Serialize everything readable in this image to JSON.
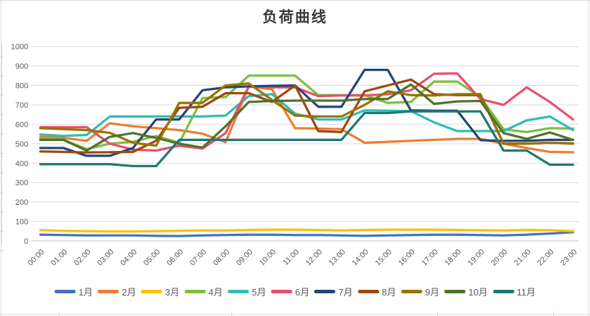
{
  "chart_data": {
    "type": "line",
    "title": "负荷曲线",
    "xlabel": "",
    "ylabel": "",
    "ylim": [
      0,
      1000
    ],
    "ytick_step": 100,
    "y_ticks": [
      0,
      100,
      200,
      300,
      400,
      500,
      600,
      700,
      800,
      900,
      1000
    ],
    "grid": true,
    "legend_position": "bottom",
    "x_labels": [
      "00:00",
      "01:00",
      "02:00",
      "03:00",
      "04:00",
      "05:00",
      "06:00",
      "07:00",
      "08:00",
      "09:00",
      "10:00",
      "11:00",
      "12:00",
      "13:00",
      "14:00",
      "15:00",
      "16:00",
      "17:00",
      "18:00",
      "19:00",
      "20:00",
      "21:00",
      "22:00",
      "23:00"
    ],
    "series": [
      {
        "name": "1月",
        "color": "#4472C4",
        "values": [
          32,
          30,
          28,
          28,
          28,
          26,
          25,
          28,
          30,
          32,
          32,
          30,
          30,
          28,
          26,
          28,
          30,
          32,
          32,
          30,
          28,
          32,
          38,
          45
        ]
      },
      {
        "name": "2月",
        "color": "#ED7D31",
        "values": [
          535,
          530,
          515,
          605,
          590,
          580,
          570,
          552,
          508,
          795,
          780,
          580,
          578,
          575,
          505,
          510,
          515,
          520,
          525,
          525,
          500,
          478,
          458,
          456
        ]
      },
      {
        "name": "3月",
        "color": "#FFC000",
        "values": [
          55,
          52,
          50,
          48,
          48,
          50,
          52,
          54,
          54,
          56,
          58,
          58,
          56,
          54,
          56,
          58,
          58,
          58,
          56,
          55,
          54,
          56,
          55,
          50
        ]
      },
      {
        "name": "4月",
        "color": "#7EBE42",
        "values": [
          525,
          520,
          472,
          500,
          510,
          540,
          505,
          735,
          740,
          850,
          850,
          850,
          750,
          750,
          750,
          710,
          715,
          820,
          820,
          740,
          575,
          560,
          580,
          578
        ]
      },
      {
        "name": "5月",
        "color": "#2FBDB3",
        "values": [
          548,
          540,
          545,
          640,
          640,
          640,
          640,
          640,
          645,
          745,
          755,
          655,
          625,
          625,
          672,
          670,
          668,
          610,
          565,
          565,
          565,
          620,
          640,
          570
        ]
      },
      {
        "name": "6月",
        "color": "#E8506B",
        "values": [
          585,
          585,
          585,
          500,
          470,
          465,
          490,
          475,
          555,
          795,
          790,
          790,
          745,
          748,
          748,
          755,
          775,
          860,
          862,
          730,
          700,
          790,
          715,
          625
        ]
      },
      {
        "name": "7月",
        "color": "#264478",
        "values": [
          478,
          478,
          438,
          438,
          478,
          625,
          625,
          775,
          790,
          795,
          798,
          800,
          690,
          690,
          880,
          880,
          672,
          670,
          670,
          518,
          515,
          515,
          520,
          520
        ]
      },
      {
        "name": "8月",
        "color": "#9E480E",
        "values": [
          460,
          458,
          455,
          456,
          458,
          515,
          685,
          690,
          760,
          760,
          715,
          800,
          565,
          560,
          770,
          800,
          830,
          755,
          750,
          750,
          500,
          500,
          505,
          500
        ]
      },
      {
        "name": "9月",
        "color": "#997300",
        "values": [
          580,
          575,
          570,
          556,
          505,
          490,
          710,
          710,
          800,
          810,
          725,
          645,
          640,
          640,
          700,
          770,
          750,
          748,
          755,
          755,
          500,
          500,
          505,
          502
        ]
      },
      {
        "name": "10月",
        "color": "#4E7429",
        "values": [
          520,
          520,
          465,
          535,
          555,
          530,
          500,
          480,
          590,
          715,
          720,
          722,
          722,
          722,
          730,
          730,
          805,
          705,
          718,
          720,
          555,
          525,
          558,
          520
        ]
      },
      {
        "name": "11月",
        "color": "#1F7872",
        "values": [
          395,
          395,
          395,
          395,
          385,
          385,
          520,
          520,
          520,
          520,
          520,
          520,
          520,
          520,
          658,
          658,
          666,
          666,
          666,
          666,
          465,
          465,
          392,
          392
        ]
      }
    ],
    "axis_label_color": "#595959",
    "gridline_color": "#D9D9D9",
    "axis_line_color": "#BFBFBF"
  }
}
